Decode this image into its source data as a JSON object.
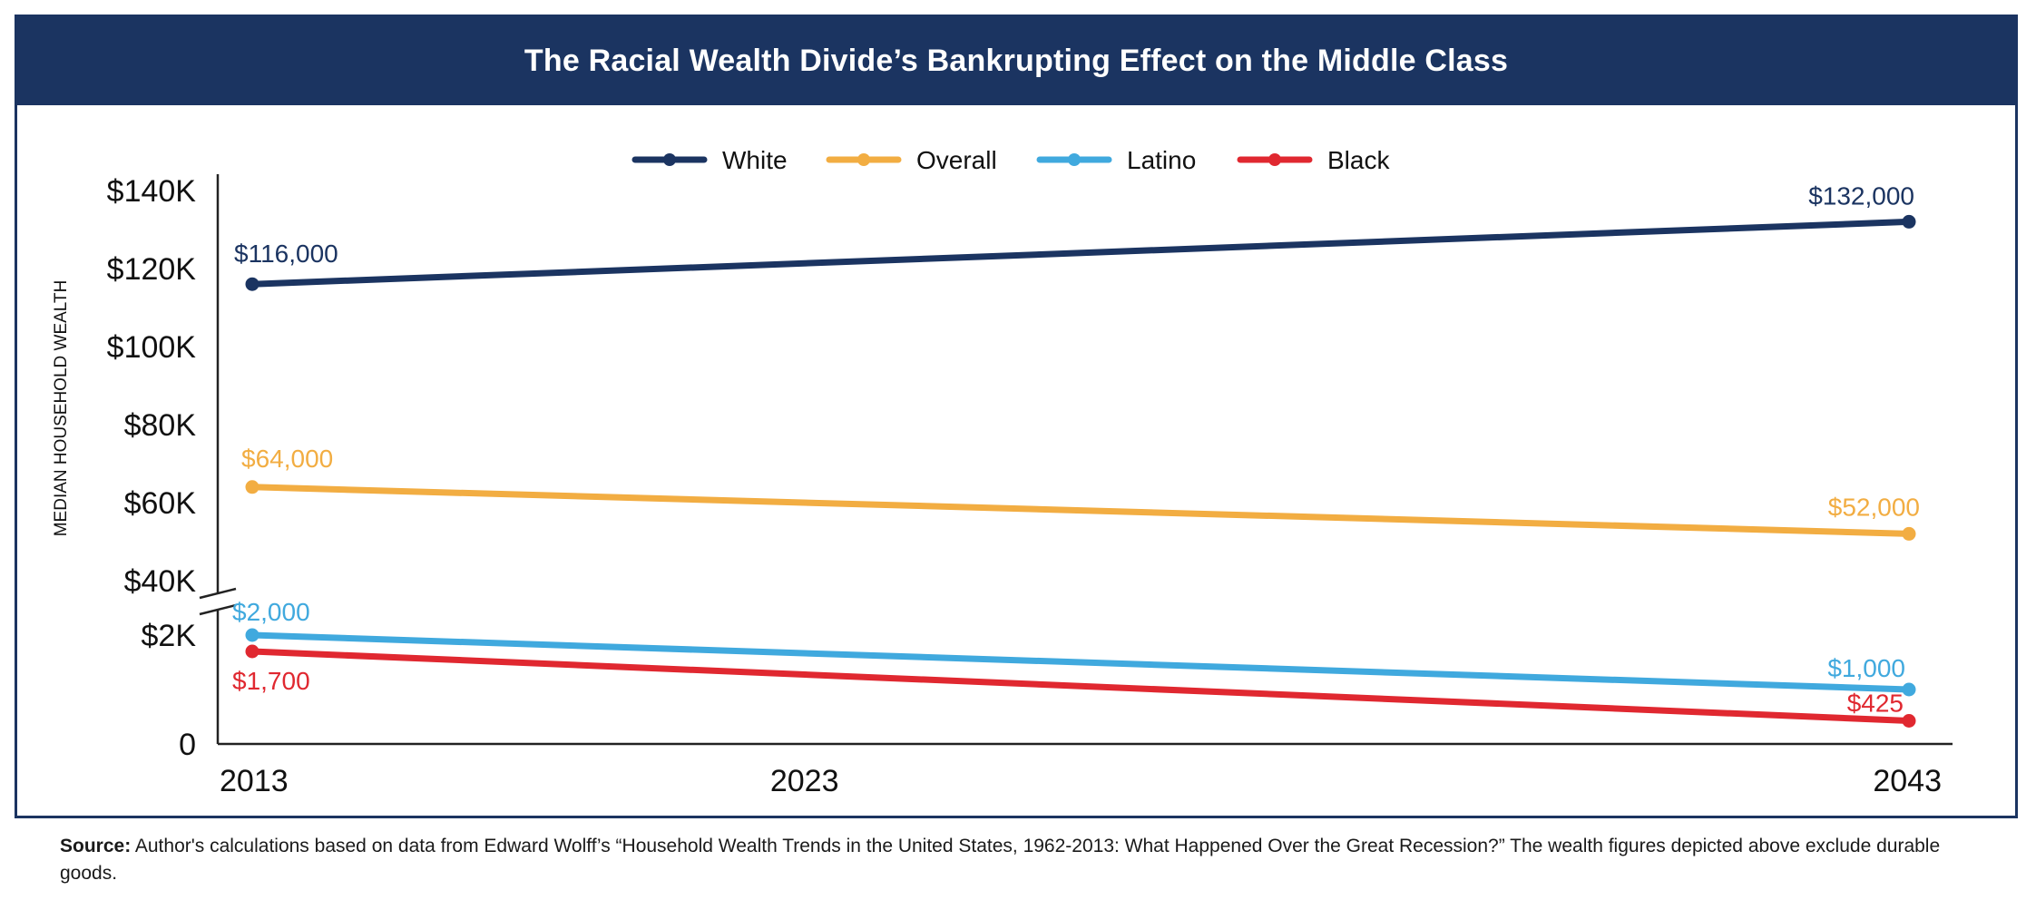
{
  "chart_data": {
    "type": "line",
    "title": "The Racial Wealth Divide’s Bankrupting Effect on the Middle Class",
    "xlabel": "",
    "ylabel": "MEDIAN HOUSEHOLD WEALTH",
    "x": [
      2013,
      2023,
      2043
    ],
    "x_tick_labels": [
      "2013",
      "2023",
      "2043"
    ],
    "y_tick_labels": [
      "0",
      "$2K",
      "$40K",
      "$60K",
      "$80K",
      "$100K",
      "$120K",
      "$140K"
    ],
    "y_axis_break": "between $2K and $40K",
    "legend": "top-center",
    "grid": false,
    "series": [
      {
        "name": "White",
        "color": "#1b3461",
        "x": [
          2013,
          2043
        ],
        "values": [
          116000,
          132000
        ],
        "labels": [
          "$116,000",
          "$132,000"
        ]
      },
      {
        "name": "Overall",
        "color": "#f2ad42",
        "x": [
          2013,
          2043
        ],
        "values": [
          64000,
          52000
        ],
        "labels": [
          "$64,000",
          "$52,000"
        ]
      },
      {
        "name": "Latino",
        "color": "#40a9de",
        "x": [
          2013,
          2043
        ],
        "values": [
          2000,
          1000
        ],
        "labels": [
          "$2,000",
          "$1,000"
        ]
      },
      {
        "name": "Black",
        "color": "#e02830",
        "x": [
          2013,
          2043
        ],
        "values": [
          1700,
          425
        ],
        "labels": [
          "$1,700",
          "$425"
        ]
      }
    ]
  },
  "footer": {
    "source_label": "Source:",
    "source_text": " Author's calculations based on data from Edward Wolff’s “Household Wealth Trends in the United States, 1962-2013: What Happened Over the Great Recession?” The wealth figures depicted above exclude durable goods."
  }
}
